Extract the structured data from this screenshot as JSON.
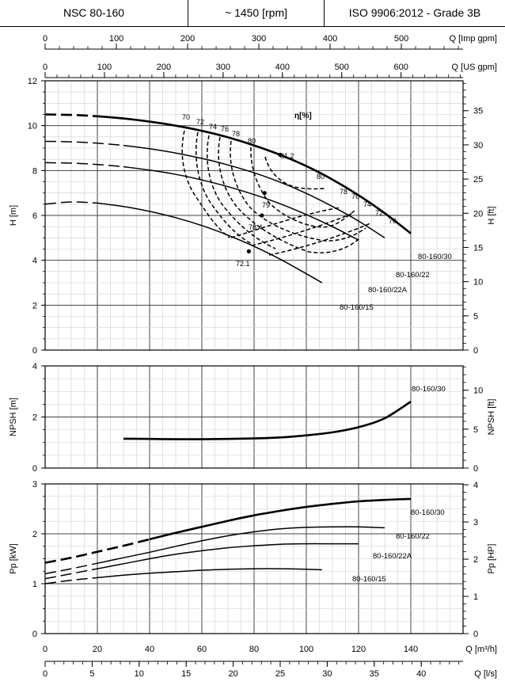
{
  "header": {
    "model": "NSC 80-160",
    "speed": "~ 1450 [rpm]",
    "standard": "ISO 9906:2012 - Grade 3B"
  },
  "chart_data": [
    {
      "type": "line",
      "title": "",
      "xlabel": "Q [m³/h]",
      "x_secondary_labels": [
        "Q [Imp gpm]",
        "Q [US gpm]",
        "Q [l/s]"
      ],
      "x_ticks_m3h": [
        0,
        20,
        40,
        60,
        80,
        100,
        120,
        140
      ],
      "x_ticks_imp_gpm": [
        0,
        100,
        200,
        300,
        400,
        500
      ],
      "x_ticks_us_gpm": [
        0,
        100,
        200,
        300,
        400,
        500,
        600
      ],
      "x_ticks_ls": [
        0,
        5,
        10,
        15,
        20,
        25,
        30,
        35,
        40
      ],
      "xlim": [
        0,
        160
      ],
      "ylabel": "H [m]",
      "ylabel_right": "H [ft]",
      "ylim": [
        0,
        12
      ],
      "y_ticks": [
        0,
        2,
        4,
        6,
        8,
        10,
        12
      ],
      "y_ticks_right": [
        0,
        5,
        10,
        15,
        20,
        25,
        30,
        35
      ],
      "efficiency_label": "η[%]",
      "series": [
        {
          "name": "80-160/30",
          "x": [
            0,
            10,
            20,
            30,
            40,
            50,
            60,
            70,
            80,
            90,
            100,
            110,
            120,
            130,
            140
          ],
          "y": [
            10.5,
            10.48,
            10.42,
            10.32,
            10.18,
            10.0,
            9.77,
            9.48,
            9.12,
            8.7,
            8.2,
            7.6,
            6.9,
            6.1,
            5.2
          ]
        },
        {
          "name": "80-160/22",
          "x": [
            0,
            10,
            20,
            30,
            40,
            50,
            60,
            70,
            80,
            90,
            100,
            110,
            120,
            130
          ],
          "y": [
            9.3,
            9.28,
            9.22,
            9.12,
            8.97,
            8.78,
            8.54,
            8.25,
            7.9,
            7.48,
            6.98,
            6.4,
            5.75,
            5.0
          ]
        },
        {
          "name": "80-160/22A",
          "x": [
            0,
            10,
            20,
            30,
            40,
            50,
            60,
            70,
            80,
            90,
            100,
            110,
            120
          ],
          "y": [
            8.35,
            8.33,
            8.27,
            8.17,
            8.02,
            7.83,
            7.58,
            7.28,
            6.93,
            6.52,
            6.04,
            5.5,
            4.9
          ]
        },
        {
          "name": "80-160/15",
          "x": [
            0,
            10,
            20,
            30,
            40,
            50,
            60,
            70,
            80,
            90,
            100,
            106
          ],
          "y": [
            6.5,
            6.6,
            6.55,
            6.4,
            6.18,
            5.9,
            5.55,
            5.12,
            4.62,
            4.05,
            3.4,
            3.0
          ]
        }
      ],
      "efficiency_labels": [
        "70",
        "72",
        "74",
        "76",
        "78",
        "80",
        "81.2",
        "80",
        "78",
        "76",
        "74",
        "72",
        "70",
        "79",
        "78.4",
        "72.1"
      ],
      "bep_points": [
        {
          "series": "80-160/30",
          "x": 90,
          "y": 8.7,
          "eta": 81.2
        },
        {
          "series": "80-160/22",
          "x": 84,
          "y": 7.0,
          "eta": 79
        },
        {
          "series": "80-160/22A",
          "x": 83,
          "y": 6.0,
          "eta": 78.4
        },
        {
          "series": "80-160/15",
          "x": 78,
          "y": 4.4,
          "eta": 72.1
        }
      ]
    },
    {
      "type": "line",
      "title": "",
      "xlabel": "Q [m³/h]",
      "ylabel": "NPSH [m]",
      "ylabel_right": "NPSH [ft]",
      "ylim": [
        0,
        4
      ],
      "y_ticks": [
        0,
        2,
        4
      ],
      "y_ticks_right": [
        0,
        5,
        10
      ],
      "series": [
        {
          "name": "80-160/30",
          "x": [
            30,
            40,
            50,
            60,
            70,
            80,
            90,
            100,
            110,
            120,
            130,
            140
          ],
          "y": [
            1.15,
            1.14,
            1.13,
            1.13,
            1.14,
            1.16,
            1.2,
            1.28,
            1.4,
            1.6,
            1.95,
            2.6
          ]
        }
      ]
    },
    {
      "type": "line",
      "title": "",
      "xlabel": "Q [m³/h]",
      "ylabel": "Pp [kW]",
      "ylabel_right": "Pp [HP]",
      "ylim": [
        0,
        3
      ],
      "y_ticks": [
        0,
        1,
        2,
        3
      ],
      "y_ticks_right": [
        0,
        1,
        2,
        3,
        4
      ],
      "series": [
        {
          "name": "80-160/30",
          "x": [
            0,
            10,
            20,
            30,
            40,
            50,
            60,
            70,
            80,
            90,
            100,
            110,
            120,
            130,
            140
          ],
          "y": [
            1.42,
            1.52,
            1.64,
            1.76,
            1.89,
            2.02,
            2.14,
            2.26,
            2.37,
            2.46,
            2.54,
            2.6,
            2.65,
            2.68,
            2.7
          ]
        },
        {
          "name": "80-160/22",
          "x": [
            0,
            10,
            20,
            30,
            40,
            50,
            60,
            70,
            80,
            90,
            100,
            110,
            120,
            130
          ],
          "y": [
            1.2,
            1.3,
            1.41,
            1.52,
            1.63,
            1.75,
            1.86,
            1.96,
            2.04,
            2.1,
            2.13,
            2.14,
            2.14,
            2.12
          ]
        },
        {
          "name": "80-160/22A",
          "x": [
            0,
            10,
            20,
            30,
            40,
            50,
            60,
            70,
            80,
            90,
            100,
            110,
            120
          ],
          "y": [
            1.1,
            1.2,
            1.3,
            1.4,
            1.5,
            1.59,
            1.66,
            1.72,
            1.76,
            1.79,
            1.8,
            1.8,
            1.8
          ]
        },
        {
          "name": "80-160/15",
          "x": [
            0,
            10,
            20,
            30,
            40,
            50,
            60,
            70,
            80,
            90,
            100,
            106
          ],
          "y": [
            1.0,
            1.07,
            1.12,
            1.17,
            1.21,
            1.24,
            1.27,
            1.29,
            1.3,
            1.3,
            1.29,
            1.28
          ]
        }
      ]
    }
  ]
}
